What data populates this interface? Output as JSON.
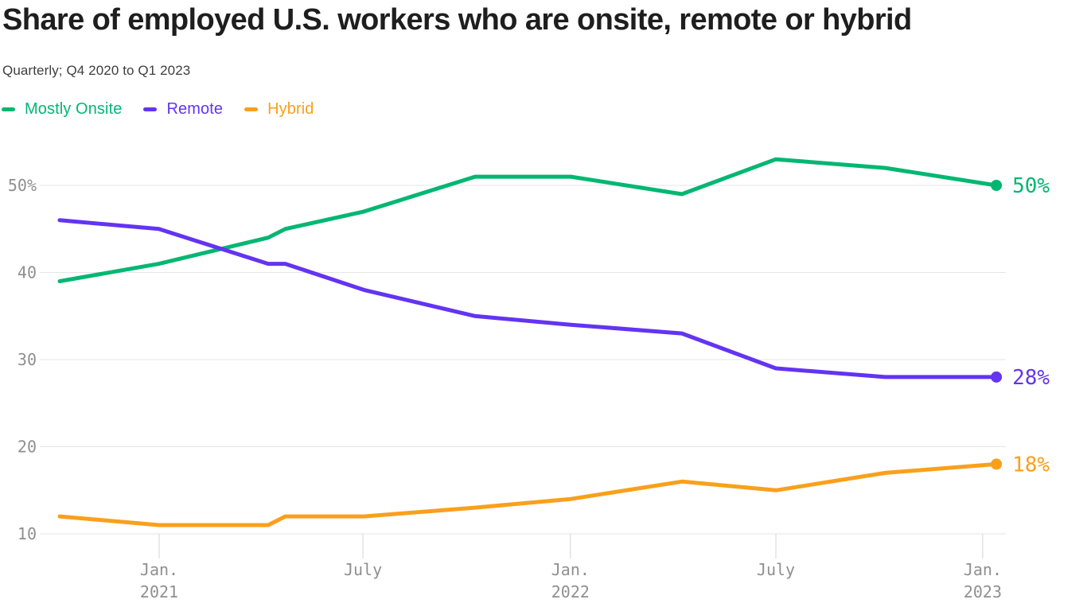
{
  "title": "Share of employed U.S. workers who are onsite, remote or hybrid",
  "subtitle": "Quarterly; Q4 2020 to Q1 2023",
  "chart_data": {
    "type": "line",
    "title": "Share of employed U.S. workers who are onsite, remote or hybrid",
    "subtitle": "Quarterly; Q4 2020 to Q1 2023",
    "grid": true,
    "legend_position": "top-left",
    "point_dates": [
      "Oct. 2020",
      "Jan. 2021",
      "Apr. 2021",
      "May 2021",
      "July 2021",
      "Oct. 2021",
      "Jan. 2022",
      "Apr. 2022",
      "July 2022",
      "Oct. 2022",
      "Jan. 2023"
    ],
    "x_months": [
      0,
      2.9,
      6.1,
      6.6,
      8.9,
      12.15,
      14.95,
      18.2,
      20.95,
      24.15,
      27.4
    ],
    "x_axis": {
      "ticks": [
        {
          "month": 2.91,
          "lines": [
            "Jan.",
            "2021"
          ]
        },
        {
          "month": 8.87,
          "lines": [
            "July"
          ]
        },
        {
          "month": 14.94,
          "lines": [
            "Jan.",
            "2022"
          ]
        },
        {
          "month": 20.95,
          "lines": [
            "July"
          ]
        },
        {
          "month": 27.0,
          "lines": [
            "Jan.",
            "2023"
          ]
        }
      ]
    },
    "y_axis": {
      "unit": "%",
      "range": [
        10,
        55
      ],
      "ticks": [
        {
          "value": 10,
          "label": "10"
        },
        {
          "value": 20,
          "label": "20"
        },
        {
          "value": 30,
          "label": "30"
        },
        {
          "value": 40,
          "label": "40"
        },
        {
          "value": 50,
          "label": "50%"
        }
      ]
    },
    "series": [
      {
        "name": "Mostly Onsite",
        "color": "#00b772",
        "values": [
          39,
          41,
          44,
          45,
          47,
          51,
          51,
          49,
          53,
          52,
          50
        ],
        "end_label": "50%"
      },
      {
        "name": "Remote",
        "color": "#6334f1",
        "values": [
          46,
          45,
          41,
          41,
          38,
          35,
          34,
          33,
          29,
          28,
          28
        ],
        "end_label": "28%"
      },
      {
        "name": "Hybrid",
        "color": "#f9a01b",
        "values": [
          12,
          11,
          11,
          12,
          12,
          13,
          14,
          16,
          15,
          17,
          18
        ],
        "end_label": "18%"
      }
    ],
    "colors": {
      "grid": "#e5e5e5",
      "tick": "#d4d4d4",
      "axis_text": "#8f8f8f"
    }
  }
}
